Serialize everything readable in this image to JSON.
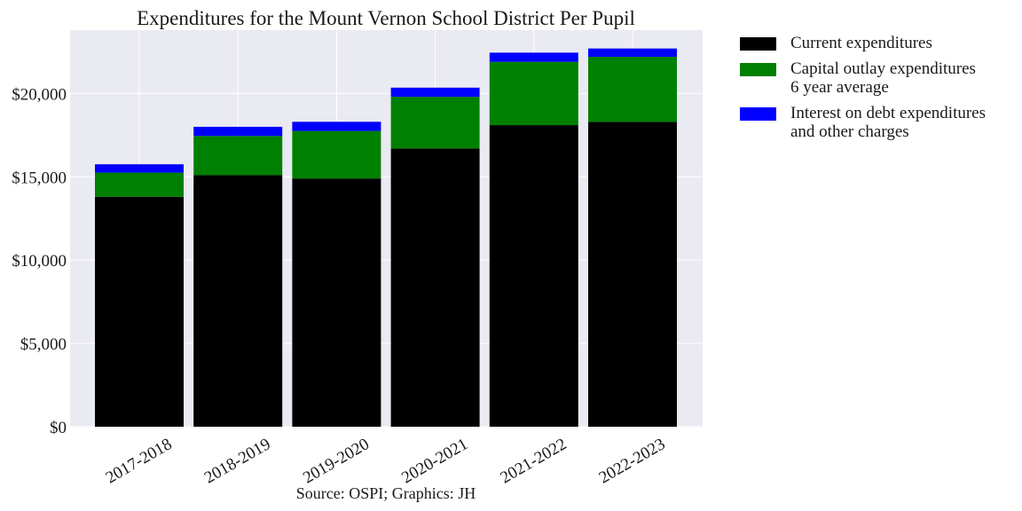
{
  "chart_data": {
    "type": "bar",
    "stacked": true,
    "title": "Expenditures for the Mount Vernon School District Per Pupil",
    "xlabel": "",
    "ylabel": "",
    "categories": [
      "2017-2018",
      "2018-2019",
      "2019-2020",
      "2020-2021",
      "2021-2022",
      "2022-2023"
    ],
    "series": [
      {
        "name": "Current expenditures",
        "color": "#000000",
        "values": [
          13800,
          15100,
          14900,
          16700,
          18100,
          18300
        ]
      },
      {
        "name": "Capital outlay expenditures\n6 year average",
        "color": "#008000",
        "values": [
          1450,
          2350,
          2850,
          3100,
          3800,
          3900
        ]
      },
      {
        "name": "Interest on debt expenditures\nand other charges",
        "color": "#0000ff",
        "values": [
          500,
          550,
          550,
          550,
          550,
          500
        ]
      }
    ],
    "ylim": [
      0,
      23800
    ],
    "yticks": [
      0,
      5000,
      10000,
      15000,
      20000
    ],
    "ytick_labels": [
      "$0",
      "$5,000",
      "$10,000",
      "$15,000",
      "$20,000"
    ],
    "grid": true,
    "legend_position": "outside-right-top",
    "source_note": "Source: OSPI; Graphics: JH"
  }
}
